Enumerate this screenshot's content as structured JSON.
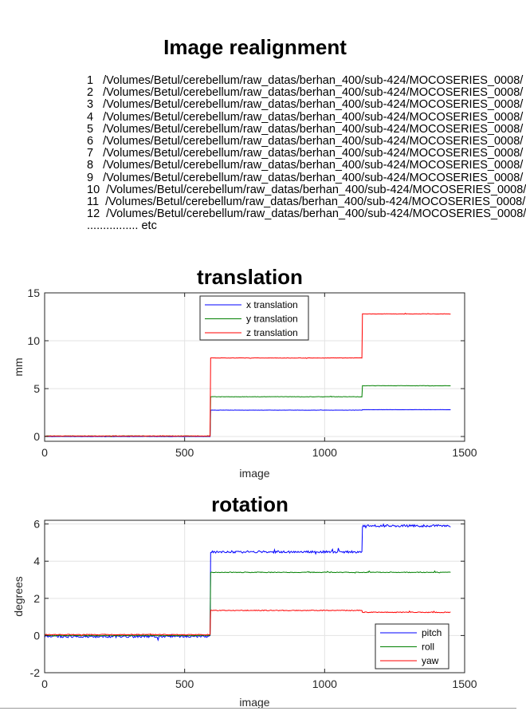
{
  "figure_title": "Image realignment",
  "file_list": [
    "1   /Volumes/Betul/cerebellum/raw_datas/berhan_400/sub-424/MOCOSERIES_0008/",
    "2   /Volumes/Betul/cerebellum/raw_datas/berhan_400/sub-424/MOCOSERIES_0008/",
    "3   /Volumes/Betul/cerebellum/raw_datas/berhan_400/sub-424/MOCOSERIES_0008/",
    "4   /Volumes/Betul/cerebellum/raw_datas/berhan_400/sub-424/MOCOSERIES_0008/",
    "5   /Volumes/Betul/cerebellum/raw_datas/berhan_400/sub-424/MOCOSERIES_0008/",
    "6   /Volumes/Betul/cerebellum/raw_datas/berhan_400/sub-424/MOCOSERIES_0008/",
    "7   /Volumes/Betul/cerebellum/raw_datas/berhan_400/sub-424/MOCOSERIES_0008/",
    "8   /Volumes/Betul/cerebellum/raw_datas/berhan_400/sub-424/MOCOSERIES_0008/",
    "9   /Volumes/Betul/cerebellum/raw_datas/berhan_400/sub-424/MOCOSERIES_0008/",
    "10  /Volumes/Betul/cerebellum/raw_datas/berhan_400/sub-424/MOCOSERIES_0008/",
    "11  /Volumes/Betul/cerebellum/raw_datas/berhan_400/sub-424/MOCOSERIES_0008/",
    "12  /Volumes/Betul/cerebellum/raw_datas/berhan_400/sub-424/MOCOSERIES_0008/",
    "................ etc"
  ],
  "chart_data": [
    {
      "type": "line",
      "title": "translation",
      "xlabel": "image",
      "ylabel": "mm",
      "xlim": [
        0,
        1500
      ],
      "ylim": [
        -0.5,
        15
      ],
      "xticks": [
        0,
        500,
        1000,
        1500
      ],
      "yticks": [
        0,
        5,
        10,
        15
      ],
      "grid": true,
      "legend_position": "top-center",
      "series": [
        {
          "name": "x translation",
          "color": "#0000ff",
          "noise": 0.01,
          "segments": [
            {
              "x0": 0,
              "x1": 593,
              "y": 0.0
            },
            {
              "x0": 593,
              "x1": 1135,
              "y": 2.75
            },
            {
              "x0": 1135,
              "x1": 1450,
              "y": 2.8
            }
          ]
        },
        {
          "name": "y translation",
          "color": "#008000",
          "noise": 0.02,
          "segments": [
            {
              "x0": 0,
              "x1": 593,
              "y": 0.05
            },
            {
              "x0": 593,
              "x1": 1135,
              "y": 4.15
            },
            {
              "x0": 1135,
              "x1": 1450,
              "y": 5.3
            }
          ]
        },
        {
          "name": "z translation",
          "color": "#ff0000",
          "noise": 0.02,
          "segments": [
            {
              "x0": 0,
              "x1": 593,
              "y": 0.05
            },
            {
              "x0": 593,
              "x1": 1135,
              "y": 8.2
            },
            {
              "x0": 1135,
              "x1": 1450,
              "y": 12.8
            }
          ]
        }
      ]
    },
    {
      "type": "line",
      "title": "rotation",
      "xlabel": "image",
      "ylabel": "degrees",
      "xlim": [
        0,
        1500
      ],
      "ylim": [
        -2,
        6.2
      ],
      "xticks": [
        0,
        500,
        1000,
        1500
      ],
      "yticks": [
        -2,
        0,
        2,
        4,
        6
      ],
      "grid": true,
      "legend_position": "bottom-right",
      "series": [
        {
          "name": "pitch",
          "color": "#0000ff",
          "noise": 0.06,
          "segments": [
            {
              "x0": 0,
              "x1": 593,
              "y": -0.05
            },
            {
              "x0": 593,
              "x1": 1135,
              "y": 4.5
            },
            {
              "x0": 1135,
              "x1": 1450,
              "y": 5.9
            }
          ]
        },
        {
          "name": "roll",
          "color": "#008000",
          "noise": 0.02,
          "segments": [
            {
              "x0": 0,
              "x1": 593,
              "y": 0.0
            },
            {
              "x0": 593,
              "x1": 1135,
              "y": 3.4
            },
            {
              "x0": 1135,
              "x1": 1450,
              "y": 3.4
            }
          ]
        },
        {
          "name": "yaw",
          "color": "#ff0000",
          "noise": 0.02,
          "segments": [
            {
              "x0": 0,
              "x1": 593,
              "y": 0.05
            },
            {
              "x0": 593,
              "x1": 1135,
              "y": 1.35
            },
            {
              "x0": 1135,
              "x1": 1450,
              "y": 1.25
            }
          ]
        }
      ]
    }
  ]
}
